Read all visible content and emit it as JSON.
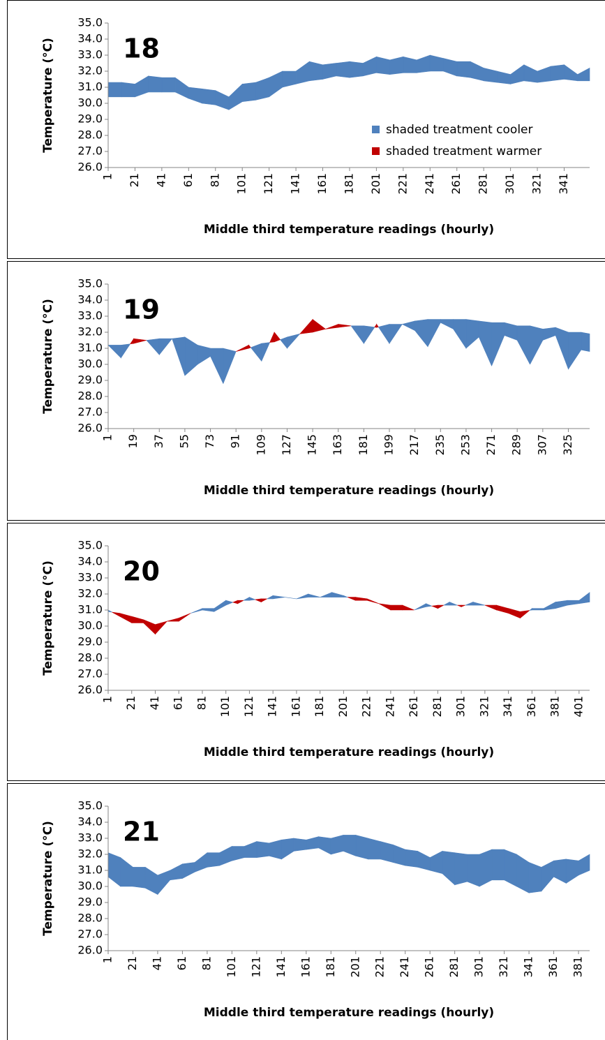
{
  "legend_items": [
    {
      "name": "shaded treatment cooler",
      "color": "#4f81bd"
    },
    {
      "name": "shaded treatment warmer",
      "color": "#c00000"
    }
  ],
  "chart_data": [
    {
      "type": "band",
      "title": "18",
      "x_label": "Middle third temperature readings (hourly)",
      "y_label": "Temperature (°C)",
      "legend": "lower right",
      "ylim": [
        26,
        35
      ],
      "yticks": [
        {
          "value": 26,
          "label": "26.0"
        },
        {
          "value": 27,
          "label": "27.0"
        },
        {
          "value": 28,
          "label": "28.0"
        },
        {
          "value": 29,
          "label": "29.0"
        },
        {
          "value": 30,
          "label": "30.0"
        },
        {
          "value": 31,
          "label": "31.0"
        },
        {
          "value": 32,
          "label": "32.0"
        },
        {
          "value": 33,
          "label": "33.0"
        },
        {
          "value": 34,
          "label": "34.0"
        },
        {
          "value": 35,
          "label": "35.0"
        }
      ],
      "xlim": [
        1,
        360
      ],
      "xticks": [
        1,
        21,
        41,
        61,
        81,
        101,
        121,
        141,
        161,
        181,
        201,
        221,
        241,
        261,
        281,
        301,
        321,
        341
      ],
      "x": [
        1,
        11,
        21,
        31,
        41,
        51,
        61,
        71,
        81,
        91,
        101,
        111,
        121,
        131,
        141,
        151,
        161,
        171,
        181,
        191,
        201,
        211,
        221,
        231,
        241,
        251,
        261,
        271,
        281,
        291,
        301,
        311,
        321,
        331,
        341,
        351,
        360
      ],
      "reference": [
        31.3,
        31.3,
        31.2,
        31.7,
        31.6,
        31.6,
        31.0,
        30.9,
        30.8,
        30.4,
        31.2,
        31.3,
        31.6,
        32.0,
        32.0,
        32.6,
        32.4,
        32.5,
        32.6,
        32.5,
        32.9,
        32.7,
        32.9,
        32.7,
        33.0,
        32.8,
        32.6,
        32.6,
        32.2,
        32.0,
        31.8,
        32.4,
        32.0,
        32.3,
        32.4,
        31.8,
        32.2
      ],
      "shaded": [
        30.4,
        30.4,
        30.4,
        30.7,
        30.7,
        30.7,
        30.3,
        30.0,
        29.9,
        29.6,
        30.1,
        30.2,
        30.4,
        31.0,
        31.2,
        31.4,
        31.5,
        31.7,
        31.6,
        31.7,
        31.9,
        31.8,
        31.9,
        31.9,
        32.0,
        32.0,
        31.7,
        31.6,
        31.4,
        31.3,
        31.2,
        31.4,
        31.3,
        31.4,
        31.5,
        31.4,
        31.4
      ]
    },
    {
      "type": "band",
      "title": "19",
      "x_label": "Middle third temperature readings (hourly)",
      "y_label": "Temperature (°C)",
      "ylim": [
        26,
        35
      ],
      "yticks": [
        {
          "value": 26,
          "label": "26.0"
        },
        {
          "value": 27,
          "label": "27.0"
        },
        {
          "value": 28,
          "label": "28.0"
        },
        {
          "value": 29,
          "label": "29.0"
        },
        {
          "value": 30,
          "label": "30.0"
        },
        {
          "value": 31,
          "label": "31.0"
        },
        {
          "value": 32,
          "label": "32.0"
        },
        {
          "value": 33,
          "label": "33.0"
        },
        {
          "value": 34,
          "label": "34.0"
        },
        {
          "value": 35,
          "label": "35.0"
        }
      ],
      "xlim": [
        1,
        340
      ],
      "xticks": [
        1,
        19,
        37,
        55,
        73,
        91,
        109,
        127,
        145,
        163,
        181,
        199,
        217,
        235,
        253,
        271,
        289,
        307,
        325
      ],
      "x": [
        1,
        10,
        19,
        28,
        37,
        46,
        55,
        64,
        73,
        82,
        91,
        100,
        109,
        118,
        127,
        136,
        145,
        154,
        163,
        172,
        181,
        190,
        199,
        208,
        217,
        226,
        235,
        244,
        253,
        262,
        271,
        280,
        289,
        298,
        307,
        316,
        325,
        334,
        340
      ],
      "reference": [
        31.2,
        31.2,
        31.3,
        31.5,
        31.6,
        31.6,
        31.7,
        31.2,
        31.0,
        31.0,
        30.8,
        31.0,
        31.3,
        31.4,
        31.7,
        31.9,
        32.0,
        32.2,
        32.3,
        32.4,
        32.4,
        32.3,
        32.5,
        32.5,
        32.7,
        32.8,
        32.8,
        32.8,
        32.8,
        32.7,
        32.6,
        32.6,
        32.4,
        32.4,
        32.2,
        32.3,
        32.0,
        32.0,
        31.9
      ],
      "shaded": [
        31.2,
        30.4,
        31.6,
        31.5,
        30.6,
        31.6,
        29.3,
        30.0,
        30.5,
        28.8,
        30.8,
        31.2,
        30.2,
        32.0,
        31.0,
        31.9,
        32.8,
        32.2,
        32.5,
        32.4,
        31.3,
        32.5,
        31.3,
        32.5,
        32.1,
        31.1,
        32.6,
        32.2,
        31.0,
        31.7,
        29.9,
        31.8,
        31.5,
        30.0,
        31.5,
        31.8,
        29.7,
        30.9,
        30.8
      ]
    },
    {
      "type": "band",
      "title": "20",
      "x_label": "Middle third temperature readings (hourly)",
      "y_label": "Temperature (°C)",
      "ylim": [
        26,
        35
      ],
      "yticks": [
        {
          "value": 26,
          "label": "26.0"
        },
        {
          "value": 27,
          "label": "27.0"
        },
        {
          "value": 28,
          "label": "28.0"
        },
        {
          "value": 29,
          "label": "29.0"
        },
        {
          "value": 30,
          "label": "30.0"
        },
        {
          "value": 31,
          "label": "31.0"
        },
        {
          "value": 32,
          "label": "32.0"
        },
        {
          "value": 33,
          "label": "33.0"
        },
        {
          "value": 34,
          "label": "34.0"
        },
        {
          "value": 35,
          "label": "35.0"
        }
      ],
      "xlim": [
        1,
        410
      ],
      "xticks": [
        1,
        21,
        41,
        61,
        81,
        101,
        121,
        141,
        161,
        181,
        201,
        221,
        241,
        261,
        281,
        301,
        321,
        341,
        361,
        381,
        401
      ],
      "x": [
        1,
        11,
        21,
        31,
        41,
        51,
        61,
        71,
        81,
        91,
        101,
        111,
        121,
        131,
        141,
        151,
        161,
        171,
        181,
        191,
        201,
        211,
        221,
        231,
        241,
        251,
        261,
        271,
        281,
        291,
        301,
        311,
        321,
        331,
        341,
        351,
        361,
        371,
        381,
        391,
        401,
        410
      ],
      "reference": [
        31.0,
        30.6,
        30.2,
        30.2,
        29.5,
        30.3,
        30.3,
        30.8,
        31.1,
        31.1,
        31.6,
        31.4,
        31.8,
        31.5,
        31.9,
        31.8,
        31.7,
        32.0,
        31.8,
        32.1,
        31.9,
        31.6,
        31.6,
        31.4,
        31.0,
        31.0,
        31.0,
        31.4,
        31.1,
        31.5,
        31.2,
        31.5,
        31.3,
        31.0,
        30.8,
        30.5,
        31.1,
        31.1,
        31.5,
        31.6,
        31.6,
        32.1
      ],
      "shaded": [
        30.9,
        30.8,
        30.6,
        30.4,
        30.1,
        30.3,
        30.5,
        30.8,
        31.0,
        30.9,
        31.3,
        31.6,
        31.6,
        31.7,
        31.7,
        31.8,
        31.7,
        31.8,
        31.8,
        31.8,
        31.8,
        31.8,
        31.7,
        31.4,
        31.3,
        31.3,
        31.0,
        31.2,
        31.3,
        31.3,
        31.3,
        31.3,
        31.3,
        31.3,
        31.1,
        30.9,
        31.0,
        31.0,
        31.1,
        31.3,
        31.4,
        31.5
      ]
    },
    {
      "type": "band",
      "title": "21",
      "x_label": "Middle third temperature readings (hourly)",
      "y_label": "Temperature (°C)",
      "ylim": [
        26,
        35
      ],
      "yticks": [
        {
          "value": 26,
          "label": "26.0"
        },
        {
          "value": 27,
          "label": "27.0"
        },
        {
          "value": 28,
          "label": "28.0"
        },
        {
          "value": 29,
          "label": "29.0"
        },
        {
          "value": 30,
          "label": "30.0"
        },
        {
          "value": 31,
          "label": "31.0"
        },
        {
          "value": 32,
          "label": "32.0"
        },
        {
          "value": 33,
          "label": "33.0"
        },
        {
          "value": 34,
          "label": "34.0"
        },
        {
          "value": 35,
          "label": "35.0"
        }
      ],
      "xlim": [
        1,
        390
      ],
      "xticks": [
        1,
        21,
        41,
        61,
        81,
        101,
        121,
        141,
        161,
        181,
        201,
        221,
        241,
        261,
        281,
        301,
        321,
        341,
        361,
        381
      ],
      "x": [
        1,
        11,
        21,
        31,
        41,
        51,
        61,
        71,
        81,
        91,
        101,
        111,
        121,
        131,
        141,
        151,
        161,
        171,
        181,
        191,
        201,
        211,
        221,
        231,
        241,
        251,
        261,
        271,
        281,
        291,
        301,
        311,
        321,
        331,
        341,
        351,
        361,
        371,
        381,
        390
      ],
      "reference": [
        32.1,
        31.8,
        31.2,
        31.2,
        30.7,
        31.0,
        31.4,
        31.5,
        32.1,
        32.1,
        32.5,
        32.5,
        32.8,
        32.7,
        32.9,
        33.0,
        32.9,
        33.1,
        33.0,
        33.2,
        33.2,
        33.0,
        32.8,
        32.6,
        32.3,
        32.2,
        31.8,
        32.2,
        32.1,
        32.0,
        32.0,
        32.3,
        32.3,
        32.0,
        31.5,
        31.2,
        31.6,
        31.7,
        31.6,
        32.0
      ],
      "shaded": [
        30.6,
        30.0,
        30.0,
        29.9,
        29.5,
        30.4,
        30.5,
        30.9,
        31.2,
        31.3,
        31.6,
        31.8,
        31.8,
        31.9,
        31.7,
        32.2,
        32.3,
        32.4,
        32.0,
        32.2,
        31.9,
        31.7,
        31.7,
        31.5,
        31.3,
        31.2,
        31.0,
        30.8,
        30.1,
        30.3,
        30.0,
        30.4,
        30.4,
        30.0,
        29.6,
        29.7,
        30.6,
        30.2,
        30.7,
        31.0
      ]
    }
  ]
}
